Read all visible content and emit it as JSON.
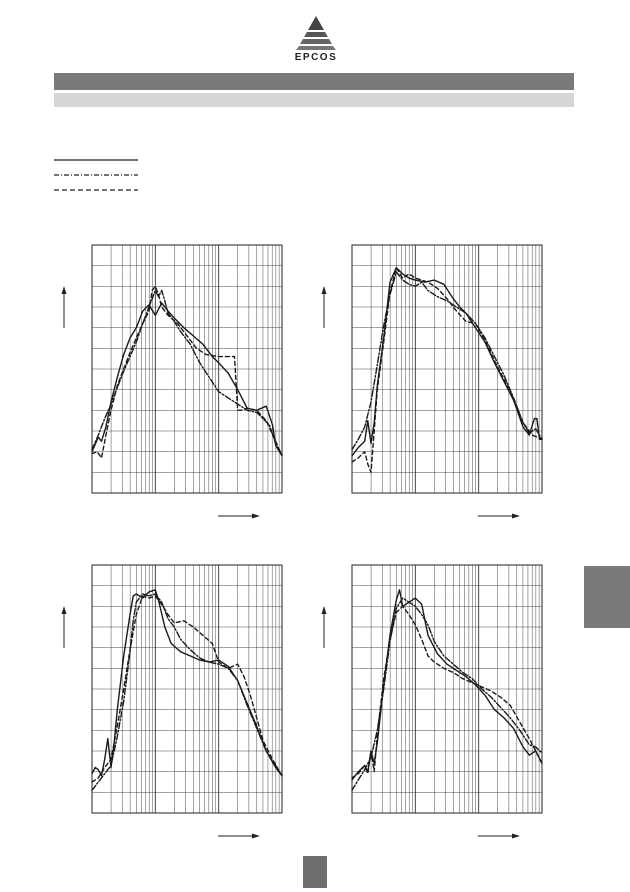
{
  "header": {
    "brand": "EPCOS"
  },
  "legend": {
    "entries": [
      {
        "style": "solid"
      },
      {
        "style": "dash-dot"
      },
      {
        "style": "dashed"
      }
    ]
  },
  "colors": {
    "header_band": "#7a7a7a",
    "sub_band": "#d6d6d6",
    "side_tab": "#7a7a7a",
    "page_box": "#6e6e6e",
    "curves": "#1a1a1a"
  },
  "chart_data": [
    {
      "type": "line",
      "x_scale": "log",
      "x_decades": 3,
      "y_divisions": 12,
      "y_range": [
        0,
        12
      ],
      "series": [
        {
          "style": "solid",
          "x": [
            0.0,
            0.05,
            0.1,
            0.15,
            0.22,
            0.3,
            0.4,
            0.5,
            0.6,
            0.7,
            0.8,
            0.9,
            1.0,
            1.1,
            1.2,
            1.32,
            1.45,
            1.6,
            1.75,
            1.9,
            2.0,
            2.15,
            2.3,
            2.45,
            2.6,
            2.75,
            2.85,
            2.9,
            3.0
          ],
          "y": [
            2.0,
            2.35,
            2.7,
            2.5,
            3.2,
            4.4,
            5.6,
            6.7,
            7.5,
            8.0,
            8.8,
            9.1,
            8.6,
            9.2,
            8.8,
            8.4,
            8.0,
            7.6,
            7.2,
            6.6,
            6.3,
            5.8,
            5.0,
            4.1,
            4.0,
            4.2,
            3.3,
            2.3,
            1.8
          ]
        },
        {
          "style": "dash-dot",
          "x": [
            0.0,
            0.1,
            0.2,
            0.3,
            0.4,
            0.5,
            0.6,
            0.7,
            0.8,
            0.9,
            1.0,
            1.05,
            1.1,
            1.15,
            1.2,
            1.3,
            1.4,
            1.55,
            1.7,
            1.85,
            2.0,
            2.15,
            2.3,
            2.45,
            2.6,
            2.7,
            2.8,
            2.9,
            3.0
          ],
          "y": [
            2.1,
            2.8,
            3.6,
            4.3,
            5.1,
            5.9,
            6.6,
            7.3,
            8.2,
            9.0,
            9.8,
            9.5,
            9.8,
            9.3,
            8.7,
            8.3,
            7.8,
            7.2,
            6.3,
            5.6,
            4.9,
            4.6,
            4.3,
            4.0,
            3.9,
            3.6,
            3.3,
            2.4,
            1.8
          ]
        },
        {
          "style": "dashed",
          "x": [
            0.0,
            0.08,
            0.15,
            0.22,
            0.3,
            0.4,
            0.5,
            0.6,
            0.7,
            0.8,
            0.9,
            0.95,
            1.0,
            1.05,
            1.1,
            1.2,
            1.35,
            1.5,
            1.65,
            1.8,
            2.0,
            2.15,
            2.25,
            2.3,
            2.35,
            2.45,
            2.6,
            2.75,
            2.9,
            3.0
          ],
          "y": [
            1.9,
            2.0,
            1.7,
            2.8,
            4.0,
            5.2,
            6.0,
            6.8,
            7.5,
            8.2,
            8.8,
            9.8,
            10.0,
            9.6,
            9.0,
            8.6,
            8.2,
            7.6,
            7.0,
            6.7,
            6.6,
            6.6,
            6.6,
            4.0,
            4.0,
            4.1,
            4.0,
            3.5,
            2.5,
            1.8
          ]
        }
      ]
    },
    {
      "type": "line",
      "x_scale": "log",
      "x_decades": 3,
      "y_divisions": 12,
      "y_range": [
        0,
        12
      ],
      "series": [
        {
          "style": "solid",
          "x": [
            0.0,
            0.1,
            0.2,
            0.25,
            0.3,
            0.35,
            0.4,
            0.5,
            0.6,
            0.7,
            0.8,
            0.9,
            1.0,
            1.15,
            1.3,
            1.45,
            1.6,
            1.7,
            1.8,
            1.95,
            2.1,
            2.25,
            2.4,
            2.55,
            2.7,
            2.8,
            2.88,
            2.92,
            2.96,
            3.0
          ],
          "y": [
            1.8,
            2.2,
            2.5,
            3.5,
            2.4,
            3.4,
            5.2,
            7.5,
            10.2,
            10.9,
            10.6,
            10.4,
            10.3,
            10.2,
            10.3,
            10.1,
            9.4,
            9.0,
            8.7,
            8.0,
            7.3,
            6.3,
            5.4,
            4.5,
            3.2,
            2.8,
            3.6,
            3.6,
            2.6,
            2.6
          ]
        },
        {
          "style": "dash-dot",
          "x": [
            0.0,
            0.1,
            0.2,
            0.3,
            0.4,
            0.5,
            0.6,
            0.7,
            0.8,
            0.9,
            1.0,
            1.1,
            1.2,
            1.35,
            1.5,
            1.65,
            1.8,
            1.95,
            2.1,
            2.25,
            2.4,
            2.55,
            2.7,
            2.8,
            2.9,
            3.0
          ],
          "y": [
            2.1,
            2.6,
            3.2,
            4.4,
            6.2,
            8.1,
            9.6,
            10.7,
            10.3,
            10.1,
            10.0,
            10.2,
            9.8,
            9.5,
            9.3,
            9.0,
            8.7,
            8.2,
            7.5,
            6.6,
            5.7,
            4.6,
            3.4,
            2.9,
            3.1,
            2.6
          ]
        },
        {
          "style": "dashed",
          "x": [
            0.0,
            0.1,
            0.2,
            0.25,
            0.3,
            0.35,
            0.4,
            0.5,
            0.6,
            0.7,
            0.8,
            0.9,
            1.0,
            1.1,
            1.2,
            1.35,
            1.5,
            1.65,
            1.8,
            1.95,
            2.1,
            2.25,
            2.4,
            2.55,
            2.7,
            2.85,
            3.0
          ],
          "y": [
            1.5,
            1.7,
            2.0,
            1.4,
            1.0,
            3.0,
            5.0,
            7.3,
            9.7,
            10.9,
            10.4,
            10.6,
            10.4,
            10.3,
            10.2,
            9.9,
            9.4,
            8.8,
            8.3,
            8.2,
            7.4,
            6.4,
            5.5,
            4.6,
            3.4,
            2.8,
            2.6
          ]
        }
      ]
    },
    {
      "type": "line",
      "x_scale": "log",
      "x_decades": 3,
      "y_divisions": 12,
      "y_range": [
        0,
        12
      ],
      "series": [
        {
          "style": "solid",
          "x": [
            0.0,
            0.05,
            0.1,
            0.15,
            0.2,
            0.25,
            0.3,
            0.35,
            0.4,
            0.5,
            0.6,
            0.65,
            0.7,
            0.8,
            0.9,
            1.0,
            1.05,
            1.15,
            1.25,
            1.4,
            1.55,
            1.7,
            1.85,
            2.0,
            2.15,
            2.3,
            2.45,
            2.6,
            2.75,
            2.9,
            3.0
          ],
          "y": [
            1.9,
            2.2,
            2.1,
            1.8,
            2.6,
            3.6,
            2.2,
            3.4,
            5.0,
            7.6,
            9.6,
            10.5,
            10.6,
            10.4,
            10.7,
            10.8,
            10.3,
            9.0,
            8.2,
            7.8,
            7.6,
            7.4,
            7.3,
            7.4,
            7.1,
            6.4,
            5.3,
            4.2,
            3.0,
            2.2,
            1.8
          ]
        },
        {
          "style": "dash-dot",
          "x": [
            0.0,
            0.1,
            0.2,
            0.3,
            0.4,
            0.5,
            0.6,
            0.65,
            0.7,
            0.8,
            0.9,
            1.0,
            1.1,
            1.2,
            1.3,
            1.4,
            1.55,
            1.7,
            1.85,
            2.0,
            2.15,
            2.3,
            2.45,
            2.6,
            2.75,
            2.9,
            3.0
          ],
          "y": [
            1.1,
            1.5,
            1.9,
            2.3,
            3.7,
            5.4,
            7.8,
            9.3,
            10.2,
            10.6,
            10.5,
            10.6,
            10.2,
            9.4,
            9.0,
            8.4,
            7.9,
            7.5,
            7.3,
            7.2,
            7.0,
            6.4,
            5.2,
            4.1,
            3.0,
            2.3,
            1.8
          ]
        },
        {
          "style": "dashed",
          "x": [
            0.0,
            0.1,
            0.2,
            0.3,
            0.4,
            0.5,
            0.6,
            0.7,
            0.8,
            0.9,
            1.0,
            1.1,
            1.2,
            1.3,
            1.45,
            1.6,
            1.75,
            1.9,
            2.0,
            2.15,
            2.3,
            2.4,
            2.5,
            2.6,
            2.7,
            2.85,
            3.0
          ],
          "y": [
            1.5,
            1.7,
            2.2,
            2.6,
            4.2,
            6.0,
            7.9,
            9.6,
            10.5,
            10.4,
            10.5,
            10.1,
            9.6,
            9.2,
            9.3,
            9.0,
            8.6,
            8.2,
            7.3,
            7.0,
            7.2,
            6.6,
            5.7,
            4.6,
            3.5,
            2.6,
            1.8
          ]
        }
      ]
    },
    {
      "type": "line",
      "x_scale": "log",
      "x_decades": 3,
      "y_divisions": 12,
      "y_range": [
        0,
        12
      ],
      "series": [
        {
          "style": "solid",
          "x": [
            0.0,
            0.1,
            0.2,
            0.25,
            0.3,
            0.35,
            0.4,
            0.5,
            0.6,
            0.7,
            0.75,
            0.8,
            0.9,
            1.0,
            1.1,
            1.2,
            1.35,
            1.5,
            1.65,
            1.8,
            1.95,
            2.1,
            2.25,
            2.4,
            2.55,
            2.7,
            2.8,
            2.9,
            3.0
          ],
          "y": [
            1.6,
            2.0,
            2.3,
            2.0,
            3.0,
            2.4,
            3.4,
            6.2,
            8.6,
            10.3,
            10.8,
            10.0,
            10.2,
            10.4,
            10.1,
            8.6,
            7.7,
            7.2,
            6.9,
            6.6,
            6.2,
            5.7,
            5.0,
            4.6,
            4.1,
            3.2,
            2.8,
            3.0,
            2.4
          ]
        },
        {
          "style": "dash-dot",
          "x": [
            0.0,
            0.1,
            0.2,
            0.3,
            0.4,
            0.5,
            0.6,
            0.7,
            0.8,
            0.9,
            1.0,
            1.1,
            1.2,
            1.3,
            1.45,
            1.6,
            1.75,
            1.9,
            2.05,
            2.2,
            2.35,
            2.5,
            2.65,
            2.8,
            2.9,
            3.0
          ],
          "y": [
            1.1,
            1.6,
            2.1,
            2.7,
            4.0,
            6.0,
            8.3,
            9.9,
            10.4,
            10.2,
            10.0,
            9.6,
            9.1,
            8.3,
            7.6,
            7.2,
            6.8,
            6.5,
            6.0,
            5.6,
            5.1,
            4.6,
            4.0,
            3.3,
            3.2,
            2.9
          ]
        },
        {
          "style": "dashed",
          "x": [
            0.0,
            0.1,
            0.2,
            0.25,
            0.3,
            0.35,
            0.4,
            0.5,
            0.6,
            0.7,
            0.8,
            0.9,
            1.0,
            1.1,
            1.2,
            1.3,
            1.45,
            1.6,
            1.75,
            1.9,
            2.05,
            2.2,
            2.35,
            2.5,
            2.65,
            2.8,
            2.9,
            3.0
          ],
          "y": [
            1.7,
            1.9,
            2.3,
            1.9,
            3.0,
            2.0,
            3.8,
            6.5,
            8.4,
            9.7,
            10.0,
            9.6,
            9.1,
            8.4,
            7.6,
            7.3,
            7.0,
            6.8,
            6.5,
            6.3,
            6.1,
            5.9,
            5.6,
            5.2,
            4.4,
            3.6,
            3.0,
            2.4
          ]
        }
      ]
    }
  ]
}
